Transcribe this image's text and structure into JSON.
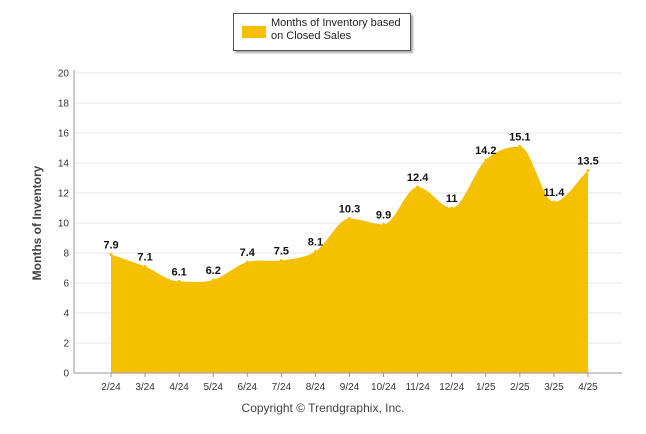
{
  "colors": {
    "area": "#F5C000",
    "grid": "#E6E6E6",
    "axis": "#999999",
    "text": "#333333"
  },
  "legend": {
    "icon": "legend-swatch",
    "label": "Months of Inventory based on Closed Sales"
  },
  "footer": {
    "copyright": "Copyright © Trendgraphix, Inc."
  },
  "chart_data": {
    "type": "area",
    "title": "",
    "ylabel": "Months of Inventory",
    "xlabel": "",
    "categories": [
      "2/24",
      "3/24",
      "4/24",
      "5/24",
      "6/24",
      "7/24",
      "8/24",
      "9/24",
      "10/24",
      "11/24",
      "12/24",
      "1/25",
      "2/25",
      "3/25",
      "4/25"
    ],
    "series": [
      {
        "name": "Months of Inventory based on Closed Sales",
        "values": [
          7.9,
          7.1,
          6.1,
          6.2,
          7.4,
          7.5,
          8.1,
          10.3,
          9.9,
          12.4,
          11,
          14.2,
          15.1,
          11.4,
          13.5
        ],
        "value_labels": [
          "7.9",
          "7.1",
          "6.1",
          "6.2",
          "7.4",
          "7.5",
          "8.1",
          "10.3",
          "9.9",
          "12.4",
          "11",
          "14.2",
          "15.1",
          "11.4",
          "13.5"
        ]
      }
    ],
    "ylim": [
      0,
      20
    ],
    "yticks": [
      0,
      2,
      4,
      6,
      8,
      10,
      12,
      14,
      16,
      18,
      20
    ],
    "grid": true,
    "legend_position": "top-center"
  }
}
